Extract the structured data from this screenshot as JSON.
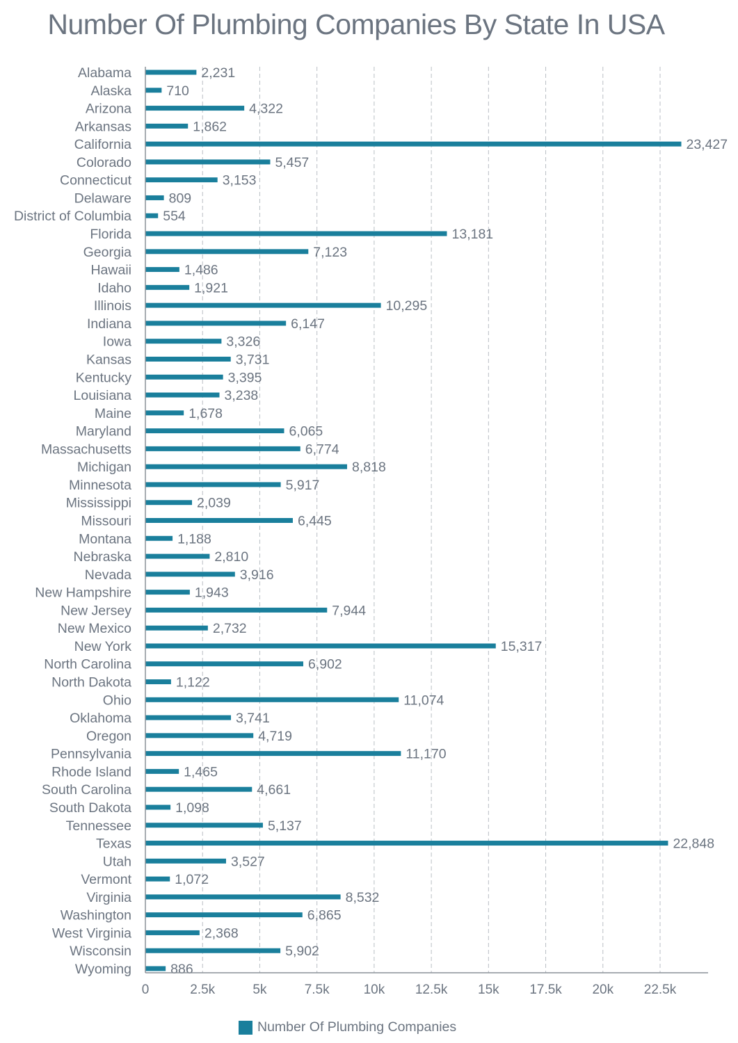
{
  "chart_data": {
    "type": "bar",
    "orientation": "horizontal",
    "title": "Number Of Plumbing Companies By State In USA",
    "xlabel": "",
    "ylabel": "",
    "xlim": [
      0,
      24600
    ],
    "grid": "vertical dashed",
    "legend_position": "bottom-center",
    "bar_color": "#1a7f9c",
    "text_color": "#6b7480",
    "x_ticks": [
      {
        "value": 0,
        "label": "0"
      },
      {
        "value": 2500,
        "label": "2.5k"
      },
      {
        "value": 5000,
        "label": "5k"
      },
      {
        "value": 7500,
        "label": "7.5k"
      },
      {
        "value": 10000,
        "label": "10k"
      },
      {
        "value": 12500,
        "label": "12.5k"
      },
      {
        "value": 15000,
        "label": "15k"
      },
      {
        "value": 17500,
        "label": "17.5k"
      },
      {
        "value": 20000,
        "label": "20k"
      },
      {
        "value": 22500,
        "label": "22.5k"
      }
    ],
    "series": [
      {
        "name": "Number Of Plumbing Companies",
        "values": [
          2231,
          710,
          4322,
          1862,
          23427,
          5457,
          3153,
          809,
          554,
          13181,
          7123,
          1486,
          1921,
          10295,
          6147,
          3326,
          3731,
          3395,
          3238,
          1678,
          6065,
          6774,
          8818,
          5917,
          2039,
          6445,
          1188,
          2810,
          3916,
          1943,
          7944,
          2732,
          15317,
          6902,
          1122,
          11074,
          3741,
          4719,
          11170,
          1465,
          4661,
          1098,
          5137,
          22848,
          3527,
          1072,
          8532,
          6865,
          2368,
          5902,
          886
        ]
      }
    ],
    "value_labels": [
      "2,231",
      "710",
      "4,322",
      "1,862",
      "23,427",
      "5,457",
      "3,153",
      "809",
      "554",
      "13,181",
      "7,123",
      "1,486",
      "1,921",
      "10,295",
      "6,147",
      "3,326",
      "3,731",
      "3,395",
      "3,238",
      "1,678",
      "6,065",
      "6,774",
      "8,818",
      "5,917",
      "2,039",
      "6,445",
      "1,188",
      "2,810",
      "3,916",
      "1,943",
      "7,944",
      "2,732",
      "15,317",
      "6,902",
      "1,122",
      "11,074",
      "3,741",
      "4,719",
      "11,170",
      "1,465",
      "4,661",
      "1,098",
      "5,137",
      "22,848",
      "3,527",
      "1,072",
      "8,532",
      "6,865",
      "2,368",
      "5,902",
      "886"
    ],
    "categories": [
      "Alabama",
      "Alaska",
      "Arizona",
      "Arkansas",
      "California",
      "Colorado",
      "Connecticut",
      "Delaware",
      "District of Columbia",
      "Florida",
      "Georgia",
      "Hawaii",
      "Idaho",
      "Illinois",
      "Indiana",
      "Iowa",
      "Kansas",
      "Kentucky",
      "Louisiana",
      "Maine",
      "Maryland",
      "Massachusetts",
      "Michigan",
      "Minnesota",
      "Mississippi",
      "Missouri",
      "Montana",
      "Nebraska",
      "Nevada",
      "New Hampshire",
      "New Jersey",
      "New Mexico",
      "New York",
      "North Carolina",
      "North Dakota",
      "Ohio",
      "Oklahoma",
      "Oregon",
      "Pennsylvania",
      "Rhode Island",
      "South Carolina",
      "South Dakota",
      "Tennessee",
      "Texas",
      "Utah",
      "Vermont",
      "Virginia",
      "Washington",
      "West Virginia",
      "Wisconsin",
      "Wyoming"
    ]
  },
  "legend": {
    "label": "Number Of Plumbing Companies"
  }
}
